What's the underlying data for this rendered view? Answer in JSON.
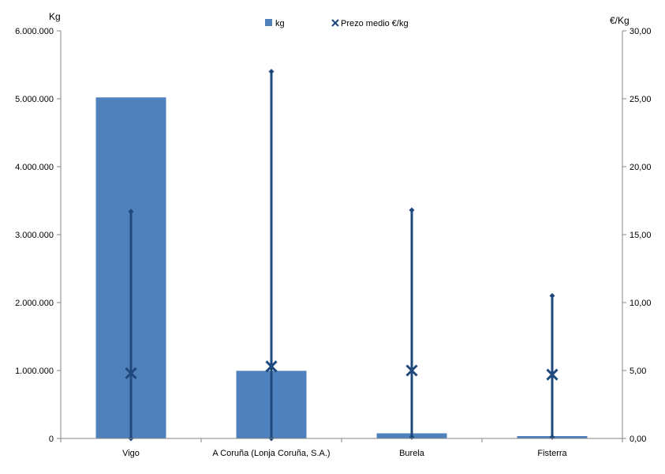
{
  "chart_data": {
    "type": "bar",
    "categories": [
      "Vigo",
      "A Coruña (Lonja Coruña, S.A.)",
      "Burela",
      "Fisterra"
    ],
    "series": [
      {
        "name": "kg",
        "type": "bar",
        "axis": "left",
        "color": "#4F81BD",
        "values": [
          5020000,
          995000,
          75000,
          35000
        ]
      },
      {
        "name": "Prezo medio €/kg",
        "type": "marker",
        "axis": "right",
        "color": "#1F497D",
        "values": [
          4.8,
          5.3,
          5.0,
          4.7
        ]
      }
    ],
    "price_range": {
      "color": "#1F497D",
      "min": [
        0.0,
        0.0,
        0.1,
        0.1
      ],
      "max": [
        16.7,
        27.0,
        16.8,
        10.5
      ]
    },
    "left_axis": {
      "label": "Kg",
      "ylim": [
        0,
        6000000
      ],
      "ticks": [
        0,
        1000000,
        2000000,
        3000000,
        4000000,
        5000000,
        6000000
      ],
      "tick_labels": [
        "0",
        "1.000.000",
        "2.000.000",
        "3.000.000",
        "4.000.000",
        "5.000.000",
        "6.000.000"
      ]
    },
    "right_axis": {
      "label": "€/Kg",
      "ylim": [
        0,
        30
      ],
      "ticks": [
        0,
        5,
        10,
        15,
        20,
        25,
        30
      ],
      "tick_labels": [
        "0,00",
        "5,00",
        "10,00",
        "15,00",
        "20,00",
        "25,00",
        "30,00"
      ]
    },
    "legend": {
      "position": "top-center",
      "entries": [
        "kg",
        "Prezo medio €/kg"
      ]
    },
    "grid": false
  }
}
